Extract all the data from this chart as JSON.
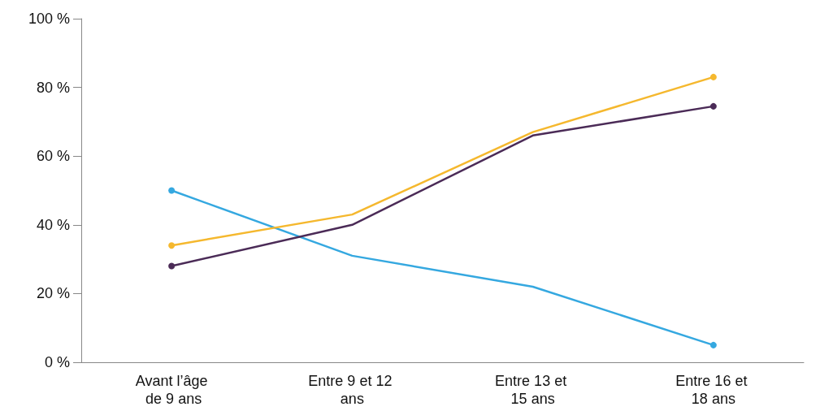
{
  "chart_data": {
    "type": "line",
    "categories": [
      "Avant l’âge de 9 ans",
      "Entre 9 et 12 ans",
      "Entre 13 et 15 ans",
      "Entre 16 et 18 ans"
    ],
    "series": [
      {
        "color": "#35a8e0",
        "values": [
          50,
          31,
          22,
          5
        ]
      },
      {
        "color": "#f5b82e",
        "values": [
          34,
          43,
          67,
          83
        ]
      },
      {
        "color": "#4b2b57",
        "values": [
          28,
          40,
          66,
          74.5
        ]
      }
    ],
    "ylim": [
      0,
      100
    ],
    "yticks": [
      {
        "value": 0,
        "label": "0 %"
      },
      {
        "value": 20,
        "label": "20 %"
      },
      {
        "value": 40,
        "label": "40 %"
      },
      {
        "value": 60,
        "label": "60 %"
      },
      {
        "value": 80,
        "label": "80 %"
      },
      {
        "value": 100,
        "label": "100 %"
      }
    ],
    "grid": false,
    "marker": "circle",
    "line_style": "solid"
  }
}
